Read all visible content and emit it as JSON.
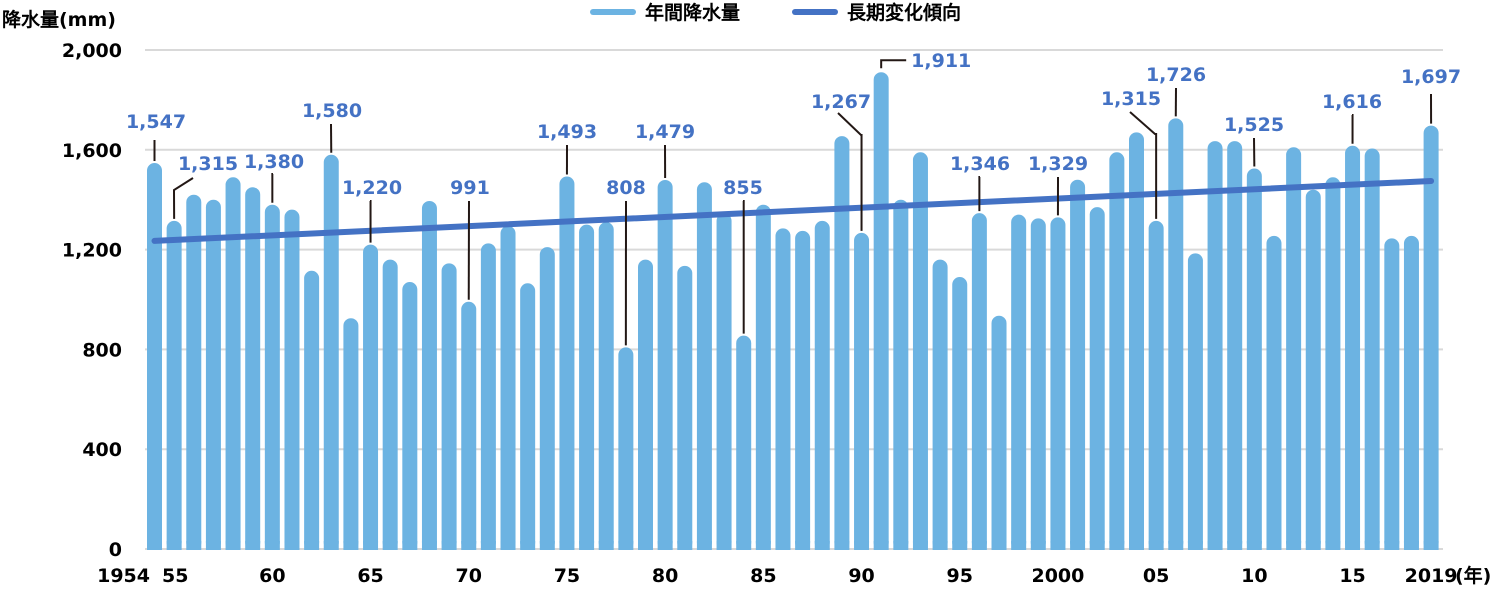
{
  "chart_data": {
    "type": "bar",
    "title": "",
    "ylabel": "降水量(mm)",
    "xlabel": "(年)",
    "ylim": [
      0,
      2000
    ],
    "yticks": [
      0,
      400,
      800,
      1200,
      1600,
      2000
    ],
    "ytick_labels": [
      "0",
      "400",
      "800",
      "1,200",
      "1,600",
      "2,000"
    ],
    "grid": true,
    "legend_position": "top",
    "legend": [
      "年間降水量",
      "長期変化傾向"
    ],
    "x_tick_labels": [
      {
        "year": 1954,
        "label": "1954"
      },
      {
        "year": 1955,
        "label": "55"
      },
      {
        "year": 1960,
        "label": "60"
      },
      {
        "year": 1965,
        "label": "65"
      },
      {
        "year": 1970,
        "label": "70"
      },
      {
        "year": 1975,
        "label": "75"
      },
      {
        "year": 1980,
        "label": "80"
      },
      {
        "year": 1985,
        "label": "85"
      },
      {
        "year": 1990,
        "label": "90"
      },
      {
        "year": 1995,
        "label": "95"
      },
      {
        "year": 2000,
        "label": "2000"
      },
      {
        "year": 2005,
        "label": "05"
      },
      {
        "year": 2010,
        "label": "10"
      },
      {
        "year": 2015,
        "label": "15"
      },
      {
        "year": 2019,
        "label": "2019"
      }
    ],
    "categories": [
      1954,
      1955,
      1956,
      1957,
      1958,
      1959,
      1960,
      1961,
      1962,
      1963,
      1964,
      1965,
      1966,
      1967,
      1968,
      1969,
      1970,
      1971,
      1972,
      1973,
      1974,
      1975,
      1976,
      1977,
      1978,
      1979,
      1980,
      1981,
      1982,
      1983,
      1984,
      1985,
      1986,
      1987,
      1988,
      1989,
      1990,
      1991,
      1992,
      1993,
      1994,
      1995,
      1996,
      1997,
      1998,
      1999,
      2000,
      2001,
      2002,
      2003,
      2004,
      2005,
      2006,
      2007,
      2008,
      2009,
      2010,
      2011,
      2012,
      2013,
      2014,
      2015,
      2016,
      2017,
      2018,
      2019
    ],
    "series": [
      {
        "name": "年間降水量",
        "type": "bar",
        "color": "#6CB3E2",
        "values": [
          1547,
          1315,
          1420,
          1400,
          1490,
          1450,
          1380,
          1360,
          1115,
          1580,
          925,
          1220,
          1160,
          1070,
          1395,
          1145,
          991,
          1225,
          1295,
          1065,
          1210,
          1493,
          1300,
          1310,
          808,
          1160,
          1479,
          1135,
          1470,
          1345,
          855,
          1380,
          1285,
          1275,
          1315,
          1655,
          1267,
          1911,
          1400,
          1590,
          1160,
          1090,
          1346,
          935,
          1340,
          1325,
          1329,
          1480,
          1370,
          1590,
          1670,
          1315,
          1726,
          1185,
          1635,
          1635,
          1525,
          1255,
          1610,
          1440,
          1490,
          1616,
          1605,
          1245,
          1255,
          1697
        ]
      },
      {
        "name": "長期変化傾向",
        "type": "line",
        "color": "#4472C4",
        "x": [
          1954,
          2019
        ],
        "values": [
          1235,
          1475
        ]
      }
    ],
    "annotations": [
      {
        "year": 1954,
        "label": "1,547"
      },
      {
        "year": 1955,
        "label": "1,315"
      },
      {
        "year": 1960,
        "label": "1,380"
      },
      {
        "year": 1963,
        "label": "1,580"
      },
      {
        "year": 1965,
        "label": "1,220"
      },
      {
        "year": 1970,
        "label": "991"
      },
      {
        "year": 1975,
        "label": "1,493"
      },
      {
        "year": 1978,
        "label": "808"
      },
      {
        "year": 1980,
        "label": "1,479"
      },
      {
        "year": 1984,
        "label": "855"
      },
      {
        "year": 1990,
        "label": "1,267"
      },
      {
        "year": 1991,
        "label": "1,911"
      },
      {
        "year": 1996,
        "label": "1,346"
      },
      {
        "year": 2000,
        "label": "1,329"
      },
      {
        "year": 2005,
        "label": "1,315"
      },
      {
        "year": 2006,
        "label": "1,726"
      },
      {
        "year": 2010,
        "label": "1,525"
      },
      {
        "year": 2015,
        "label": "1,616"
      },
      {
        "year": 2019,
        "label": "1,697"
      }
    ]
  },
  "colors": {
    "bar": "#6CB3E2",
    "trend": "#4472C4",
    "annotation_text": "#4472C4",
    "grid": "#D9D9D9",
    "axis_text": "#000000",
    "leader": "#231815"
  }
}
